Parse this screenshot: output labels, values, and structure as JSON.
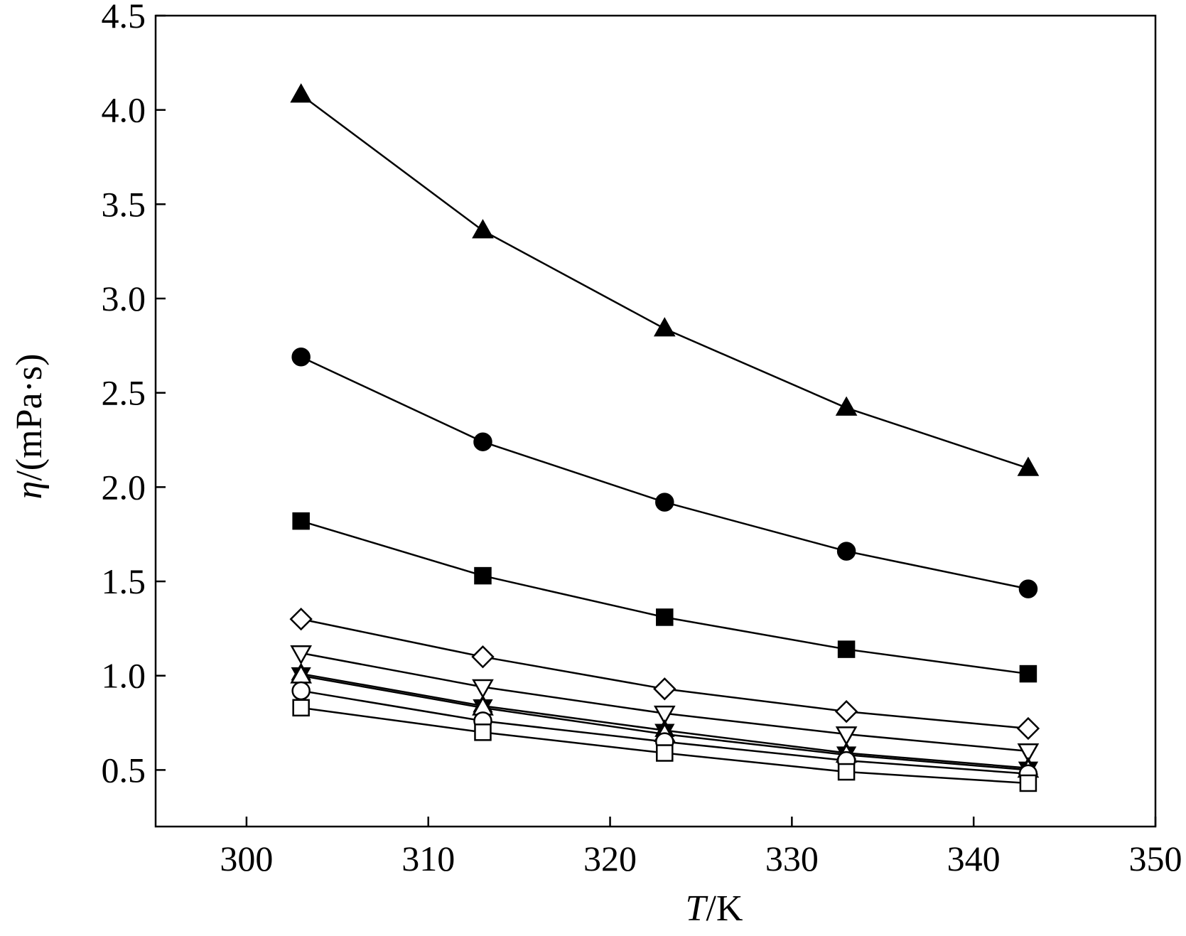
{
  "chart_data": {
    "type": "line",
    "title": "",
    "xlabel": {
      "italic": "T",
      "rest": "/K"
    },
    "ylabel": {
      "italic": "η",
      "rest": "/(mPa·s)"
    },
    "xlim": [
      295,
      350
    ],
    "ylim": [
      0.2,
      4.5
    ],
    "xticks": [
      300,
      310,
      320,
      330,
      340,
      350
    ],
    "yticks": [
      0.5,
      1.0,
      1.5,
      2.0,
      2.5,
      3.0,
      3.5,
      4.0,
      4.5
    ],
    "xtick_labels": [
      "300",
      "310",
      "320",
      "330",
      "340",
      "350"
    ],
    "ytick_labels": [
      "0.5",
      "1.0",
      "1.5",
      "2.0",
      "2.5",
      "3.0",
      "3.5",
      "4.0",
      "4.5"
    ],
    "grid": false,
    "x": [
      303,
      313,
      323,
      333,
      343
    ],
    "series": [
      {
        "name": "filled-triangle",
        "marker": "triangle-up",
        "filled": true,
        "values": [
          4.08,
          3.36,
          2.84,
          2.42,
          2.1
        ]
      },
      {
        "name": "filled-circle",
        "marker": "circle",
        "filled": true,
        "values": [
          2.69,
          2.24,
          1.92,
          1.66,
          1.46
        ]
      },
      {
        "name": "filled-square",
        "marker": "square",
        "filled": true,
        "values": [
          1.82,
          1.53,
          1.31,
          1.14,
          1.01
        ]
      },
      {
        "name": "open-diamond",
        "marker": "diamond",
        "filled": false,
        "values": [
          1.3,
          1.1,
          0.93,
          0.81,
          0.72
        ]
      },
      {
        "name": "open-triangle-down",
        "marker": "triangle-down",
        "filled": false,
        "values": [
          1.12,
          0.94,
          0.8,
          0.69,
          0.6
        ]
      },
      {
        "name": "star",
        "marker": "star",
        "filled": true,
        "values": [
          1.01,
          0.84,
          0.71,
          0.59,
          0.51
        ]
      },
      {
        "name": "open-triangle-up",
        "marker": "triangle-up",
        "filled": false,
        "values": [
          1.0,
          0.83,
          0.69,
          0.58,
          0.5
        ]
      },
      {
        "name": "open-circle",
        "marker": "circle",
        "filled": false,
        "values": [
          0.92,
          0.76,
          0.65,
          0.55,
          0.48
        ]
      },
      {
        "name": "open-square",
        "marker": "square",
        "filled": false,
        "values": [
          0.83,
          0.7,
          0.59,
          0.49,
          0.43
        ]
      }
    ]
  }
}
